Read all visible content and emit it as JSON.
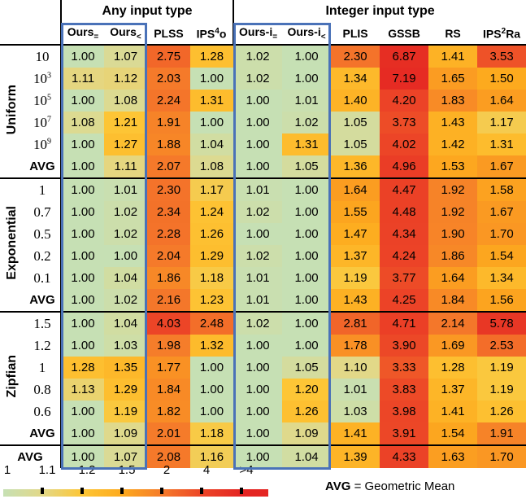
{
  "column_groups": [
    {
      "title": "Any input type",
      "columns": [
        {
          "text": "Ours",
          "sub": "="
        },
        {
          "text": "Ours",
          "sub": "<"
        },
        {
          "text": "PLSS"
        },
        {
          "text": "IPS",
          "sup": "4",
          "rest": "o"
        }
      ]
    },
    {
      "title": "Integer input type",
      "columns": [
        {
          "text": "Ours-i",
          "sub": "="
        },
        {
          "text": "Ours-i",
          "sub": "<"
        },
        {
          "text": "PLIS"
        },
        {
          "text": "GSSB"
        },
        {
          "text": "RS"
        },
        {
          "text": "IPS",
          "sup": "2",
          "rest": "Ra"
        }
      ]
    }
  ],
  "row_groups": [
    {
      "name": "Uniform",
      "rows": [
        {
          "label": {
            "text": "10"
          },
          "values": [
            "1.00",
            "1.07",
            "2.75",
            "1.28",
            "1.02",
            "1.00",
            "2.30",
            "6.87",
            "1.41",
            "3.53"
          ]
        },
        {
          "label": {
            "text": "10",
            "sup": "3"
          },
          "values": [
            "1.11",
            "1.12",
            "2.03",
            "1.00",
            "1.02",
            "1.00",
            "1.34",
            "7.19",
            "1.65",
            "1.50"
          ]
        },
        {
          "label": {
            "text": "10",
            "sup": "5"
          },
          "values": [
            "1.00",
            "1.08",
            "2.24",
            "1.31",
            "1.00",
            "1.01",
            "1.40",
            "4.20",
            "1.83",
            "1.64"
          ]
        },
        {
          "label": {
            "text": "10",
            "sup": "7"
          },
          "values": [
            "1.08",
            "1.21",
            "1.91",
            "1.00",
            "1.00",
            "1.02",
            "1.05",
            "3.73",
            "1.43",
            "1.17"
          ]
        },
        {
          "label": {
            "text": "10",
            "sup": "9"
          },
          "values": [
            "1.00",
            "1.27",
            "1.88",
            "1.04",
            "1.00",
            "1.31",
            "1.05",
            "4.02",
            "1.42",
            "1.31"
          ]
        },
        {
          "label": {
            "text": "AVG"
          },
          "values": [
            "1.00",
            "1.11",
            "2.07",
            "1.08",
            "1.00",
            "1.05",
            "1.36",
            "4.96",
            "1.53",
            "1.67"
          ]
        }
      ]
    },
    {
      "name": "Exponential",
      "rows": [
        {
          "label": {
            "text": "1"
          },
          "values": [
            "1.00",
            "1.01",
            "2.30",
            "1.17",
            "1.01",
            "1.00",
            "1.64",
            "4.47",
            "1.92",
            "1.58"
          ]
        },
        {
          "label": {
            "text": "0.7"
          },
          "values": [
            "1.00",
            "1.02",
            "2.34",
            "1.24",
            "1.02",
            "1.00",
            "1.55",
            "4.48",
            "1.92",
            "1.67"
          ]
        },
        {
          "label": {
            "text": "0.5"
          },
          "values": [
            "1.00",
            "1.02",
            "2.28",
            "1.26",
            "1.00",
            "1.00",
            "1.47",
            "4.34",
            "1.90",
            "1.70"
          ]
        },
        {
          "label": {
            "text": "0.2"
          },
          "values": [
            "1.00",
            "1.00",
            "2.04",
            "1.29",
            "1.02",
            "1.00",
            "1.37",
            "4.24",
            "1.86",
            "1.54"
          ]
        },
        {
          "label": {
            "text": "0.1"
          },
          "values": [
            "1.00",
            "1.04",
            "1.86",
            "1.18",
            "1.01",
            "1.00",
            "1.19",
            "3.77",
            "1.64",
            "1.34"
          ]
        },
        {
          "label": {
            "text": "AVG"
          },
          "values": [
            "1.00",
            "1.02",
            "2.16",
            "1.23",
            "1.01",
            "1.00",
            "1.43",
            "4.25",
            "1.84",
            "1.56"
          ]
        }
      ]
    },
    {
      "name": "Zipfian",
      "rows": [
        {
          "label": {
            "text": "1.5"
          },
          "values": [
            "1.00",
            "1.04",
            "4.03",
            "2.48",
            "1.02",
            "1.00",
            "2.81",
            "4.71",
            "2.14",
            "5.78"
          ]
        },
        {
          "label": {
            "text": "1.2"
          },
          "values": [
            "1.00",
            "1.03",
            "1.98",
            "1.32",
            "1.00",
            "1.00",
            "1.78",
            "3.90",
            "1.69",
            "2.53"
          ]
        },
        {
          "label": {
            "text": "1"
          },
          "values": [
            "1.28",
            "1.35",
            "1.77",
            "1.00",
            "1.00",
            "1.05",
            "1.10",
            "3.33",
            "1.28",
            "1.19"
          ]
        },
        {
          "label": {
            "text": "0.8"
          },
          "values": [
            "1.13",
            "1.29",
            "1.84",
            "1.00",
            "1.00",
            "1.20",
            "1.01",
            "3.83",
            "1.37",
            "1.19"
          ]
        },
        {
          "label": {
            "text": "0.6"
          },
          "values": [
            "1.00",
            "1.19",
            "1.82",
            "1.00",
            "1.00",
            "1.26",
            "1.03",
            "3.98",
            "1.41",
            "1.26"
          ]
        },
        {
          "label": {
            "text": "AVG"
          },
          "values": [
            "1.00",
            "1.09",
            "2.01",
            "1.18",
            "1.00",
            "1.09",
            "1.41",
            "3.91",
            "1.54",
            "1.91"
          ]
        }
      ]
    }
  ],
  "overall": {
    "label": {
      "text": "AVG"
    },
    "values": [
      "1.00",
      "1.07",
      "2.08",
      "1.16",
      "1.00",
      "1.04",
      "1.39",
      "4.33",
      "1.63",
      "1.70"
    ]
  },
  "color_scale": [
    {
      "value": 1,
      "color": "#c6e0b4"
    },
    {
      "value": 1.1,
      "color": "#e2d888"
    },
    {
      "value": 1.2,
      "color": "#fdc636"
    },
    {
      "value": 1.5,
      "color": "#fdaa1e"
    },
    {
      "value": 2,
      "color": "#f57b2a"
    },
    {
      "value": 4,
      "color": "#ec4527"
    },
    {
      "value": 8,
      "color": "#e42522"
    }
  ],
  "legend": {
    "ticks": [
      "1",
      "1.1",
      "1.2",
      "1.5",
      "2",
      "4",
      ">4"
    ],
    "note_bold": "AVG",
    "note": "= Geometric Mean"
  }
}
